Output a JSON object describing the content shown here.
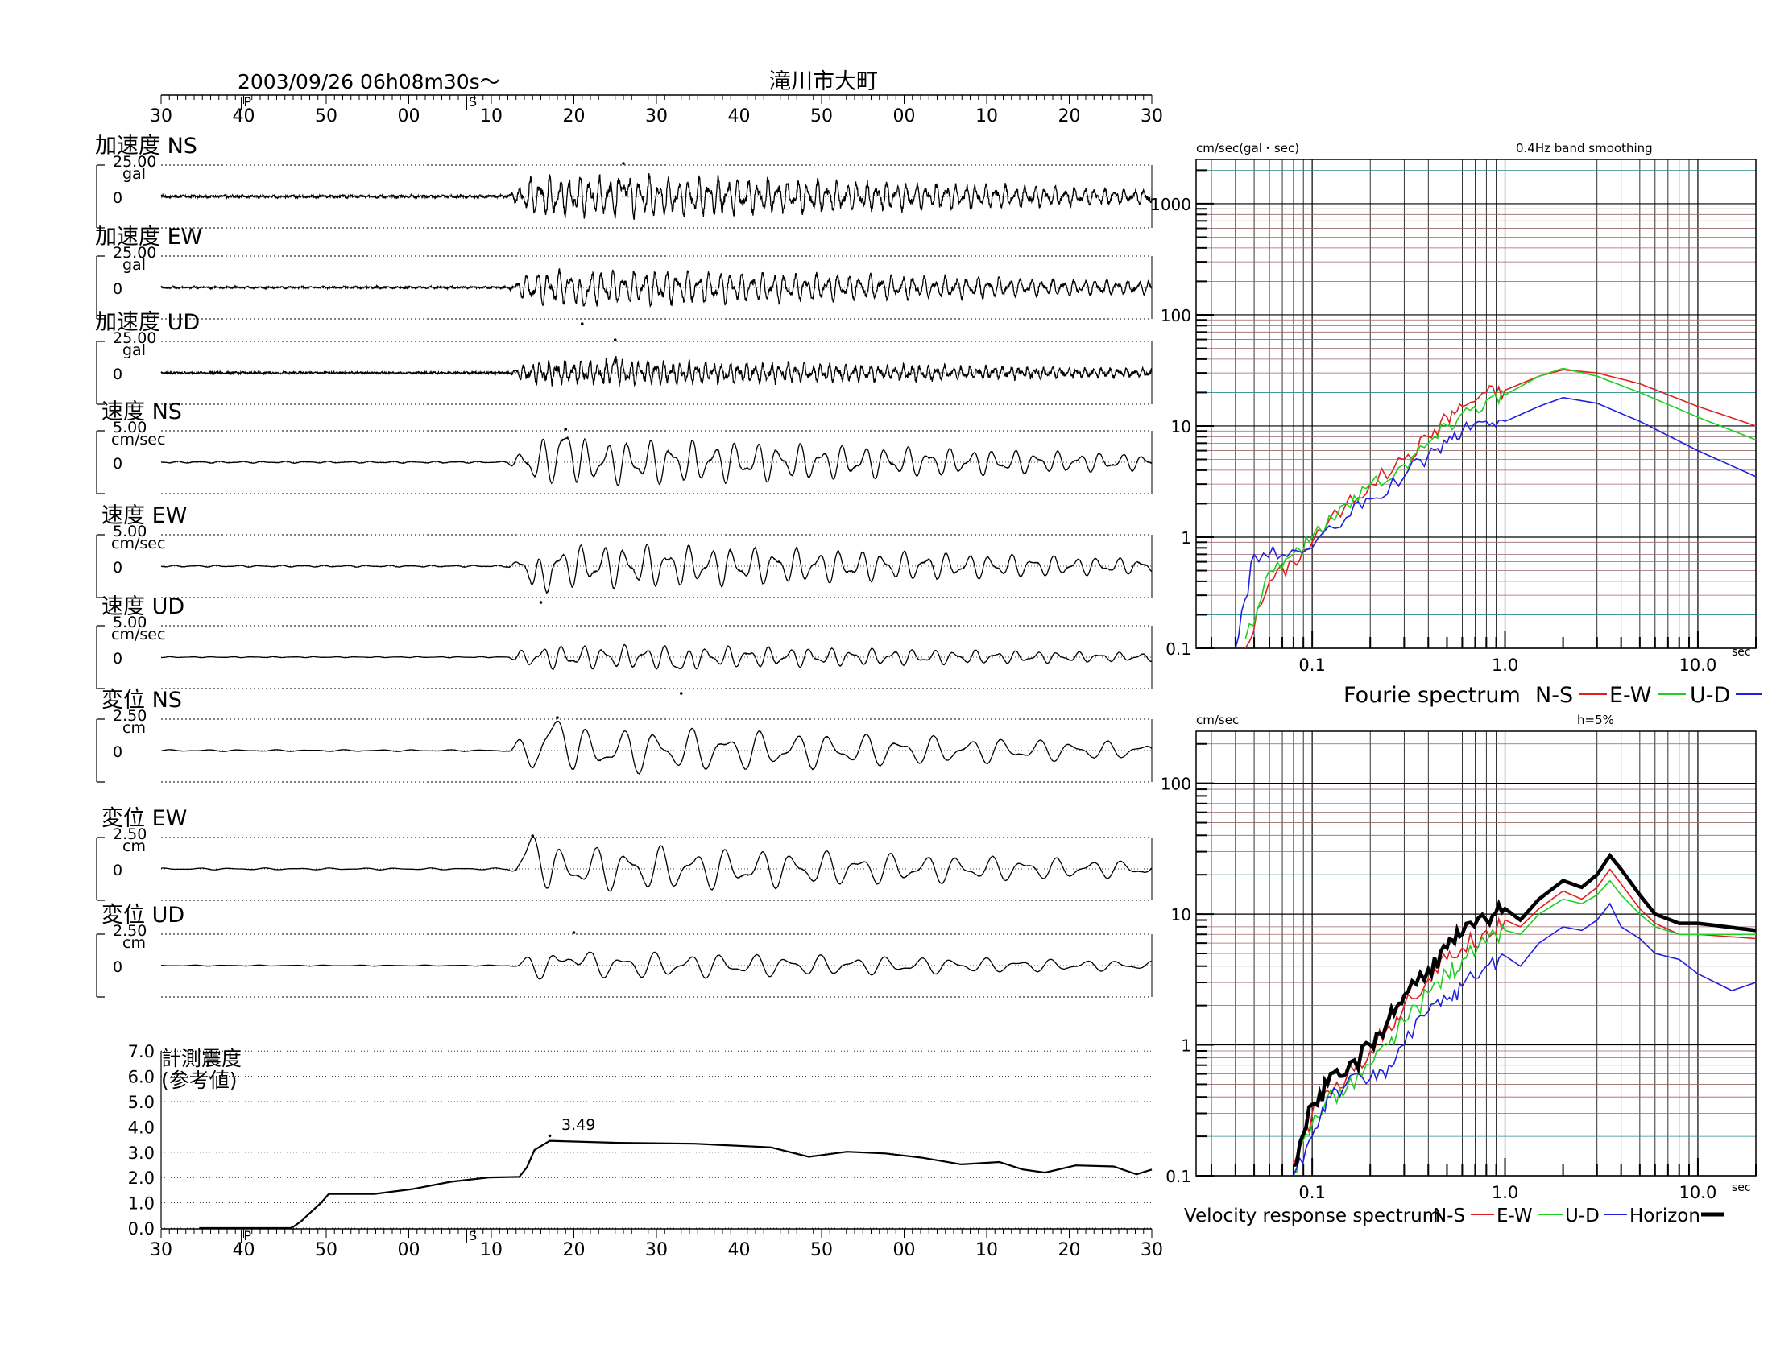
{
  "header": {
    "datetime": "2003/09/26  06h08m30s〜",
    "station": "滝川市大町",
    "p_marker": "P",
    "s_marker": "S",
    "time_ticks": [
      "30",
      "40",
      "50",
      "00",
      "10",
      "20",
      "30",
      "40",
      "50",
      "00",
      "10",
      "20",
      "30"
    ]
  },
  "panels": [
    {
      "title": "加速度 NS",
      "scale": "25.00",
      "unit": "gal",
      "zero": "0",
      "amp": 0.82,
      "peak_t": 56,
      "peak_sign": 1,
      "per": 1.2,
      "noise": 0.14
    },
    {
      "title": "加速度 EW",
      "scale": "25.00",
      "unit": "gal",
      "zero": "0",
      "amp": 0.7,
      "peak_t": 51,
      "peak_sign": -1,
      "per": 1.3,
      "noise": 0.12
    },
    {
      "title": "加速度 UD",
      "scale": "25.00",
      "unit": "gal",
      "zero": "0",
      "amp": 0.45,
      "peak_t": 55,
      "peak_sign": 1,
      "per": 1.0,
      "noise": 0.22
    },
    {
      "title": "速度 NS",
      "scale": "5.00",
      "unit": "cm/sec",
      "zero": "0",
      "amp": 0.95,
      "peak_t": 49,
      "peak_sign": 1,
      "per": 2.6,
      "noise": 0.02
    },
    {
      "title": "速度 EW",
      "scale": "5.00",
      "unit": "cm/sec",
      "zero": "0",
      "amp": 0.9,
      "peak_t": 46,
      "peak_sign": -1,
      "per": 2.6,
      "noise": 0.02
    },
    {
      "title": "速度 UD",
      "scale": "5.00",
      "unit": "cm/sec",
      "zero": "0",
      "amp": 0.5,
      "peak_t": 63,
      "peak_sign": -1,
      "per": 2.5,
      "noise": 0.02
    },
    {
      "title": "変位 NS",
      "scale": "2.50",
      "unit": "cm",
      "zero": "0",
      "amp": 0.95,
      "peak_t": 48,
      "peak_sign": 1,
      "per": 4.2,
      "noise": 0.01
    },
    {
      "title": "変位 EW",
      "scale": "2.50",
      "unit": "cm",
      "zero": "0",
      "amp": 0.95,
      "peak_t": 45,
      "peak_sign": 1,
      "per": 4.0,
      "noise": 0.01
    },
    {
      "title": "変位 UD",
      "scale": "2.50",
      "unit": "cm",
      "zero": "0",
      "amp": 0.55,
      "peak_t": 50,
      "peak_sign": 1,
      "per": 4.0,
      "noise": 0.01
    }
  ],
  "intensity": {
    "title_line1": "計測震度",
    "title_line2": "(参考値)",
    "yticks": [
      "7.0",
      "6.0",
      "5.0",
      "4.0",
      "3.0",
      "2.0",
      "1.0",
      "0.0"
    ],
    "peak_label": "3.49"
  },
  "chart_data": [
    {
      "type": "line",
      "title": "Fourie spectrum",
      "ylabel": "cm/sec(gal・sec)",
      "note": "0.4Hz band smoothing",
      "xlabel": "sec",
      "x_scale": "log",
      "y_scale": "log",
      "xlim": [
        0.025,
        20
      ],
      "ylim": [
        0.1,
        2500
      ],
      "xtick_labels": [
        "0.1",
        "1.0",
        "10.0"
      ],
      "ytick_labels": [
        "1000",
        "100",
        "10",
        "1",
        "0.1"
      ],
      "legend": [
        "N-S",
        "E-W",
        "U-D"
      ],
      "series": [
        {
          "name": "N-S",
          "color": "#e02020",
          "x": [
            0.045,
            0.06,
            0.08,
            0.1,
            0.15,
            0.2,
            0.3,
            0.4,
            0.5,
            0.6,
            0.8,
            1.0,
            1.5,
            2.0,
            3.0,
            5.0,
            10.0,
            20.0
          ],
          "y": [
            0.1,
            0.4,
            0.6,
            0.9,
            2.0,
            3.0,
            5.0,
            8.0,
            12,
            15,
            20,
            21,
            28,
            32,
            30,
            24,
            15,
            10
          ]
        },
        {
          "name": "E-W",
          "color": "#20d020",
          "x": [
            0.045,
            0.06,
            0.08,
            0.1,
            0.15,
            0.2,
            0.3,
            0.4,
            0.5,
            0.6,
            0.8,
            1.0,
            1.5,
            2.0,
            3.0,
            5.0,
            10.0,
            20.0
          ],
          "y": [
            0.12,
            0.5,
            0.7,
            1.0,
            2.0,
            3.0,
            4.5,
            7.0,
            10,
            13,
            17,
            19,
            28,
            33,
            28,
            20,
            12,
            7.5
          ]
        },
        {
          "name": "U-D",
          "color": "#2020e0",
          "x": [
            0.04,
            0.05,
            0.07,
            0.1,
            0.15,
            0.2,
            0.3,
            0.4,
            0.5,
            0.6,
            0.8,
            1.0,
            1.5,
            2.0,
            3.0,
            5.0,
            10.0,
            20.0
          ],
          "y": [
            0.1,
            0.7,
            0.7,
            0.8,
            1.5,
            2.2,
            3.5,
            5.5,
            7.0,
            9.0,
            11,
            11,
            15,
            18,
            16,
            11,
            6.0,
            3.5
          ]
        }
      ]
    },
    {
      "type": "line",
      "title": "Velocity response spectrum",
      "ylabel": "cm/sec",
      "note": "h=5%",
      "xlabel": "sec",
      "x_scale": "log",
      "y_scale": "log",
      "xlim": [
        0.025,
        20
      ],
      "ylim": [
        0.1,
        250
      ],
      "xtick_labels": [
        "0.1",
        "1.0",
        "10.0"
      ],
      "ytick_labels": [
        "100",
        "10",
        "1",
        "0.1"
      ],
      "legend": [
        "N-S",
        "E-W",
        "U-D",
        "Horizon"
      ],
      "series": [
        {
          "name": "N-S",
          "color": "#e02020",
          "x": [
            0.08,
            0.1,
            0.12,
            0.15,
            0.2,
            0.25,
            0.3,
            0.4,
            0.5,
            0.6,
            0.8,
            1.0,
            1.2,
            1.5,
            2.0,
            2.5,
            3.0,
            3.5,
            4.0,
            5.0,
            6.0,
            8.0,
            10.0,
            20.0
          ],
          "y": [
            0.12,
            0.3,
            0.45,
            0.55,
            0.9,
            1.4,
            2.0,
            3.2,
            4.5,
            5.5,
            7.5,
            9.0,
            8.0,
            11,
            15,
            13,
            16,
            22,
            17,
            11,
            8.5,
            7.0,
            7.0,
            6.5
          ]
        },
        {
          "name": "E-W",
          "color": "#20d020",
          "x": [
            0.08,
            0.1,
            0.12,
            0.15,
            0.2,
            0.25,
            0.3,
            0.4,
            0.5,
            0.6,
            0.8,
            1.0,
            1.2,
            1.5,
            2.0,
            2.5,
            3.0,
            3.5,
            4.0,
            5.0,
            6.0,
            8.0,
            10.0,
            20.0
          ],
          "y": [
            0.11,
            0.25,
            0.4,
            0.45,
            0.7,
            1.0,
            1.5,
            2.5,
            3.5,
            4.5,
            6.0,
            7.5,
            7.0,
            10,
            13,
            12,
            14,
            18,
            14,
            10,
            8.0,
            7.0,
            7.0,
            7.0
          ]
        },
        {
          "name": "U-D",
          "color": "#2020e0",
          "x": [
            0.08,
            0.1,
            0.12,
            0.15,
            0.2,
            0.25,
            0.3,
            0.4,
            0.5,
            0.6,
            0.8,
            1.0,
            1.2,
            1.5,
            2.0,
            2.5,
            3.0,
            3.5,
            4.0,
            5.0,
            6.0,
            8.0,
            10.0,
            15.0,
            20.0
          ],
          "y": [
            0.1,
            0.2,
            0.4,
            0.5,
            0.55,
            0.7,
            1.0,
            1.8,
            2.2,
            2.8,
            4.0,
            4.8,
            4.0,
            6.0,
            8.0,
            7.5,
            9.0,
            12,
            8.0,
            6.5,
            5.0,
            4.5,
            3.5,
            2.6,
            3.0
          ]
        },
        {
          "name": "Horizon",
          "color": "#000000",
          "x": [
            0.08,
            0.1,
            0.12,
            0.15,
            0.2,
            0.25,
            0.3,
            0.4,
            0.5,
            0.6,
            0.8,
            1.0,
            1.2,
            1.5,
            2.0,
            2.5,
            3.0,
            3.5,
            4.0,
            5.0,
            6.0,
            8.0,
            10.0,
            20.0
          ],
          "y": [
            0.12,
            0.35,
            0.5,
            0.6,
            1.0,
            1.6,
            2.4,
            3.8,
            5.5,
            7.0,
            9.0,
            11,
            9.0,
            13,
            18,
            16,
            20,
            28,
            22,
            14,
            10,
            8.5,
            8.5,
            7.5
          ]
        }
      ]
    }
  ]
}
